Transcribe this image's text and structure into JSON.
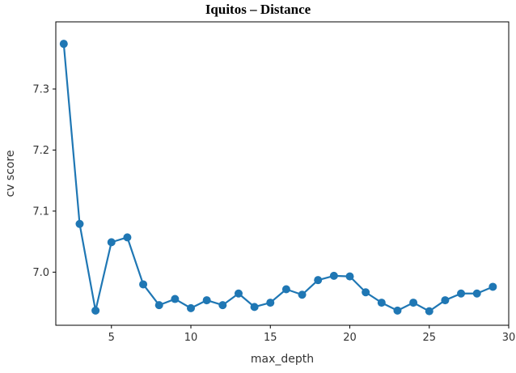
{
  "chart_data": {
    "type": "line",
    "title": "Iquitos – Distance",
    "xlabel": "max_depth",
    "ylabel": "cv score",
    "xlim": [
      1.5,
      30.0
    ],
    "ylim": [
      6.913,
      7.41
    ],
    "xticks": [
      5,
      10,
      15,
      20,
      25,
      30
    ],
    "yticks": [
      7.0,
      7.1,
      7.2,
      7.3
    ],
    "ytick_labels": [
      "7.0",
      "7.1",
      "7.2",
      "7.3"
    ],
    "grid": false,
    "color": "#1f77b4",
    "series": [
      {
        "x": [
          2,
          3,
          4,
          5,
          6,
          7,
          8,
          9,
          10,
          11,
          12,
          13,
          14,
          15,
          16,
          17,
          18,
          19,
          20,
          21,
          22,
          23,
          24,
          25,
          26,
          27,
          28,
          29
        ],
        "y": [
          7.374,
          7.079,
          6.937,
          7.049,
          7.057,
          6.98,
          6.946,
          6.956,
          6.941,
          6.954,
          6.946,
          6.965,
          6.943,
          6.95,
          6.972,
          6.963,
          6.987,
          6.994,
          6.993,
          6.967,
          6.95,
          6.937,
          6.95,
          6.936,
          6.954,
          6.965,
          6.965,
          6.976
        ]
      }
    ]
  }
}
